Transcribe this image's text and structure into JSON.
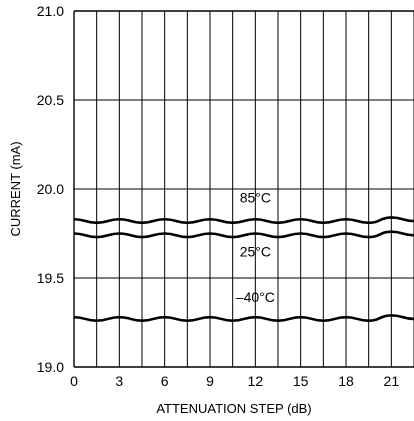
{
  "chart_data": {
    "type": "line",
    "title": "",
    "xlabel": "ATTENUATION STEP (dB)",
    "ylabel": "CURRENT (mA)",
    "xlim": [
      0,
      22.5
    ],
    "ylim": [
      19.0,
      21.0
    ],
    "x_ticks": [
      0,
      3,
      6,
      9,
      12,
      15,
      18,
      21
    ],
    "x_tick_labels": [
      "0",
      "3",
      "6",
      "9",
      "12",
      "15",
      "18",
      "21"
    ],
    "y_ticks": [
      19.0,
      19.5,
      20.0,
      20.5,
      21.0
    ],
    "y_tick_labels": [
      "19.0",
      "19.5",
      "20.0",
      "20.5",
      "21.0"
    ],
    "grid": {
      "x_every": 1.5,
      "y_every": 0.5
    },
    "series": [
      {
        "name": "85°C",
        "x": [
          0,
          1.5,
          3,
          4.5,
          6,
          7.5,
          9,
          10.5,
          12,
          13.5,
          15,
          16.5,
          18,
          19.5,
          21,
          22.5
        ],
        "values": [
          19.83,
          19.81,
          19.83,
          19.81,
          19.83,
          19.81,
          19.83,
          19.81,
          19.83,
          19.81,
          19.83,
          19.81,
          19.83,
          19.81,
          19.84,
          19.82
        ]
      },
      {
        "name": "25°C",
        "x": [
          0,
          1.5,
          3,
          4.5,
          6,
          7.5,
          9,
          10.5,
          12,
          13.5,
          15,
          16.5,
          18,
          19.5,
          21,
          22.5
        ],
        "values": [
          19.75,
          19.73,
          19.75,
          19.73,
          19.75,
          19.73,
          19.75,
          19.73,
          19.75,
          19.73,
          19.75,
          19.73,
          19.75,
          19.73,
          19.76,
          19.74
        ]
      },
      {
        "name": "–40°C",
        "x": [
          0,
          1.5,
          3,
          4.5,
          6,
          7.5,
          9,
          10.5,
          12,
          13.5,
          15,
          16.5,
          18,
          19.5,
          21,
          22.5
        ],
        "values": [
          19.28,
          19.26,
          19.28,
          19.26,
          19.28,
          19.26,
          19.28,
          19.26,
          19.28,
          19.26,
          19.28,
          19.26,
          19.28,
          19.26,
          19.29,
          19.27
        ]
      }
    ],
    "series_label_positions": [
      {
        "name": "85°C",
        "x": 12,
        "y": 19.925
      },
      {
        "name": "25°C",
        "x": 12,
        "y": 19.62
      },
      {
        "name": "–40°C",
        "x": 12,
        "y": 19.365
      }
    ]
  }
}
